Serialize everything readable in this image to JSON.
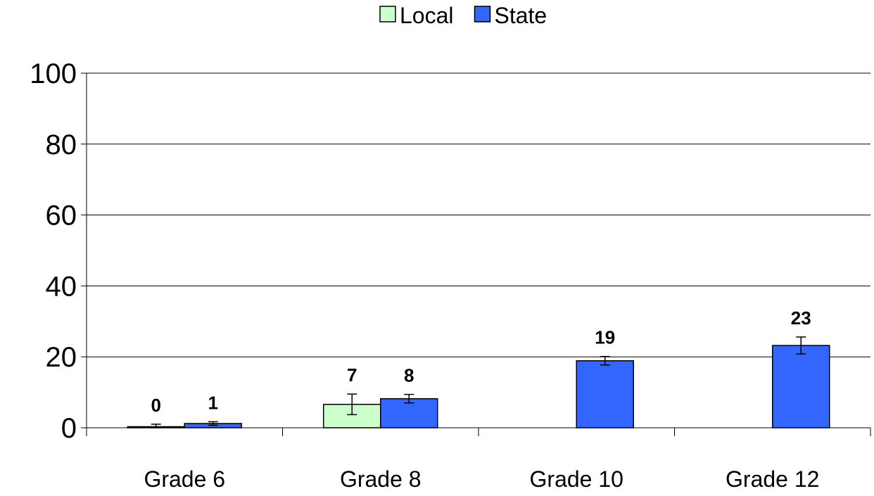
{
  "chart_data": {
    "type": "bar",
    "categories": [
      "Grade 6",
      "Grade 8",
      "Grade 10",
      "Grade 12"
    ],
    "series": [
      {
        "name": "Local",
        "color": "#ccffcc",
        "values": [
          0.3,
          6.6,
          null,
          null
        ],
        "labels": [
          "0",
          "7",
          null,
          null
        ],
        "error": [
          0.7,
          2.9,
          null,
          null
        ]
      },
      {
        "name": "State",
        "color": "#3366ff",
        "values": [
          1.2,
          8.2,
          18.9,
          23.2
        ],
        "labels": [
          "1",
          "8",
          "19",
          "23"
        ],
        "error": [
          0.5,
          1.2,
          1.2,
          2.4
        ]
      }
    ],
    "ylim": [
      0,
      100
    ],
    "yticks": [
      0,
      20,
      40,
      60,
      80,
      100
    ],
    "grid": true,
    "legend_position": "top-center",
    "title": "",
    "xlabel": "",
    "ylabel": ""
  }
}
